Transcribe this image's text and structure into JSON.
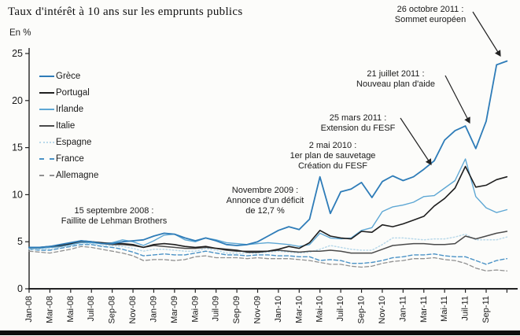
{
  "title": "Taux d'intérêt à 10 ans sur les emprunts publics",
  "unit_label": "En %",
  "chart_data": {
    "type": "line",
    "title": "Taux d'intérêt à 10 ans sur les emprunts publics",
    "ylabel": "En %",
    "ylim": [
      0,
      25
    ],
    "yticks": [
      0,
      5,
      10,
      15,
      20,
      25
    ],
    "grid": "off",
    "legend_position": "inside top-left",
    "x_frequency": "monthly, Jan-08 to Nov-11, ticks every 2 months",
    "x_tick_labels": [
      "Jan-08",
      "Mar-08",
      "Mai-08",
      "Juil-08",
      "Sep-08",
      "Nov-08",
      "Jan-09",
      "Mar-09",
      "Mai-09",
      "Juil-09",
      "Sep-09",
      "Nov-09",
      "Jan-10",
      "Mar-10",
      "Mai-10",
      "Juil-10",
      "Sep-10",
      "Nov-10",
      "Jan-11",
      "Mar-11",
      "Mai-11",
      "Juil-11",
      "Sep-11"
    ],
    "series": [
      {
        "name": "Grèce",
        "color": "#2e7cb8",
        "dash": "solid",
        "width": 1.8,
        "values": [
          4.4,
          4.4,
          4.5,
          4.7,
          4.9,
          5.1,
          5.0,
          4.8,
          4.8,
          5.0,
          5.1,
          5.2,
          5.6,
          5.9,
          5.8,
          5.4,
          5.1,
          5.4,
          5.1,
          4.7,
          4.6,
          4.7,
          5.0,
          5.6,
          6.2,
          6.6,
          6.3,
          7.4,
          11.9,
          8.0,
          10.3,
          10.6,
          11.3,
          9.7,
          11.4,
          12.0,
          11.5,
          11.9,
          12.7,
          13.6,
          15.8,
          16.8,
          17.3,
          14.9,
          17.8,
          23.8,
          24.2
        ]
      },
      {
        "name": "Portugal",
        "color": "#1f1f1f",
        "dash": "solid",
        "width": 1.6,
        "values": [
          4.4,
          4.4,
          4.5,
          4.6,
          4.8,
          5.1,
          5.0,
          4.9,
          4.8,
          4.8,
          4.7,
          4.4,
          4.7,
          4.8,
          4.7,
          4.5,
          4.4,
          4.5,
          4.3,
          4.2,
          4.1,
          3.9,
          3.9,
          4.0,
          4.2,
          4.5,
          4.3,
          4.9,
          6.2,
          5.6,
          5.4,
          5.3,
          6.1,
          6.0,
          6.8,
          6.6,
          6.9,
          7.3,
          7.7,
          8.8,
          9.6,
          10.7,
          13.0,
          10.8,
          11.0,
          11.6,
          11.9
        ]
      },
      {
        "name": "Irlande",
        "color": "#5ea7d4",
        "dash": "solid",
        "width": 1.4,
        "values": [
          4.3,
          4.3,
          4.4,
          4.5,
          4.7,
          4.9,
          4.9,
          4.8,
          4.9,
          5.2,
          5.0,
          4.6,
          5.1,
          5.7,
          5.8,
          5.2,
          5.0,
          5.4,
          5.2,
          4.9,
          4.8,
          4.7,
          4.8,
          4.9,
          4.8,
          4.7,
          4.5,
          4.7,
          5.9,
          5.4,
          5.3,
          5.4,
          6.2,
          6.5,
          8.2,
          8.7,
          8.9,
          9.2,
          9.8,
          9.9,
          10.7,
          11.5,
          13.8,
          9.8,
          8.6,
          8.1,
          8.4
        ]
      },
      {
        "name": "Italie",
        "color": "#4a4a4a",
        "dash": "solid",
        "width": 1.5,
        "values": [
          4.4,
          4.4,
          4.4,
          4.5,
          4.7,
          5.0,
          5.0,
          4.8,
          4.7,
          4.7,
          4.6,
          4.4,
          4.6,
          4.5,
          4.4,
          4.3,
          4.3,
          4.4,
          4.3,
          4.1,
          4.0,
          4.0,
          4.0,
          4.0,
          4.1,
          4.0,
          3.9,
          4.0,
          4.0,
          4.1,
          4.0,
          3.8,
          3.8,
          3.8,
          4.2,
          4.6,
          4.7,
          4.8,
          4.8,
          4.7,
          4.7,
          4.8,
          5.6,
          5.3,
          5.6,
          5.9,
          6.1
        ]
      },
      {
        "name": "Espagne",
        "color": "#b9d9ea",
        "dash": "dotted",
        "width": 1.5,
        "values": [
          4.2,
          4.2,
          4.2,
          4.4,
          4.6,
          4.9,
          4.8,
          4.6,
          4.6,
          4.5,
          4.3,
          4.0,
          4.2,
          4.2,
          4.1,
          4.0,
          4.0,
          4.3,
          4.1,
          3.8,
          3.8,
          3.8,
          3.8,
          3.9,
          4.0,
          3.9,
          3.8,
          3.9,
          4.2,
          4.6,
          4.4,
          4.2,
          4.1,
          4.1,
          4.7,
          5.4,
          5.4,
          5.3,
          5.2,
          5.3,
          5.3,
          5.5,
          5.8,
          5.2,
          5.2,
          5.2,
          5.5
        ]
      },
      {
        "name": "France",
        "color": "#4a92c6",
        "dash": "dashed",
        "width": 1.4,
        "values": [
          4.2,
          4.1,
          4.1,
          4.3,
          4.5,
          4.7,
          4.7,
          4.5,
          4.4,
          4.2,
          3.9,
          3.5,
          3.6,
          3.7,
          3.6,
          3.6,
          3.8,
          4.0,
          3.8,
          3.6,
          3.6,
          3.5,
          3.6,
          3.6,
          3.5,
          3.5,
          3.4,
          3.4,
          3.0,
          3.1,
          3.0,
          2.7,
          2.7,
          2.8,
          3.0,
          3.3,
          3.4,
          3.6,
          3.6,
          3.7,
          3.5,
          3.4,
          3.4,
          3.0,
          2.6,
          3.0,
          3.2
        ]
      },
      {
        "name": "Allemagne",
        "color": "#909090",
        "dash": "dashed",
        "width": 1.3,
        "values": [
          4.0,
          3.9,
          3.8,
          4.0,
          4.2,
          4.5,
          4.4,
          4.2,
          4.0,
          3.8,
          3.5,
          3.0,
          3.1,
          3.1,
          3.0,
          3.1,
          3.4,
          3.5,
          3.3,
          3.3,
          3.3,
          3.2,
          3.3,
          3.2,
          3.2,
          3.2,
          3.1,
          3.0,
          2.8,
          2.6,
          2.6,
          2.4,
          2.3,
          2.4,
          2.7,
          2.9,
          3.0,
          3.2,
          3.2,
          3.3,
          3.1,
          3.0,
          2.7,
          2.2,
          1.9,
          2.0,
          1.9
        ]
      }
    ]
  },
  "annotations": [
    {
      "id": "lehman",
      "lines": [
        "15 septembre 2008 :",
        "Faillite de Lehman Brothers"
      ]
    },
    {
      "id": "deficit",
      "lines": [
        "Novembre 2009 :",
        "Annonce d'un déficit",
        "de 12,7 %"
      ]
    },
    {
      "id": "sauvetage",
      "lines": [
        "2 mai 2010 :",
        "1er plan de sauvetage",
        "Création du FESF"
      ]
    },
    {
      "id": "fesf",
      "lines": [
        "25 mars 2011 :",
        "Extension du FESF"
      ]
    },
    {
      "id": "aide",
      "lines": [
        "21 juillet 2011 :",
        "Nouveau plan d'aide"
      ]
    },
    {
      "id": "sommet",
      "lines": [
        "26 octobre 2011 :",
        "Sommet européen"
      ]
    }
  ]
}
